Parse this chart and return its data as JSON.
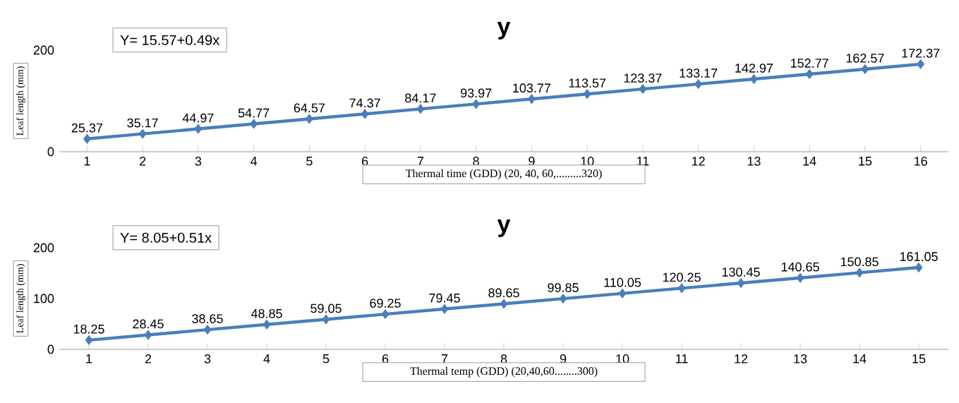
{
  "chart_data": [
    {
      "type": "line",
      "title": "y",
      "xlabel": "Thermal time (GDD) (20, 40, 60,.........320)",
      "ylabel": "Leaf length (mm)",
      "annotations": [
        "Y= 15.57+0.49x"
      ],
      "categories": [
        "1",
        "2",
        "3",
        "4",
        "5",
        "6",
        "7",
        "8",
        "9",
        "10",
        "11",
        "12",
        "13",
        "14",
        "15",
        "16"
      ],
      "values": [
        25.37,
        35.17,
        44.97,
        54.77,
        64.57,
        74.37,
        84.17,
        93.97,
        103.77,
        113.57,
        123.37,
        133.17,
        142.97,
        152.77,
        162.57,
        172.37
      ],
      "color": "#4a7ebb",
      "ylim": [
        0,
        200
      ],
      "yticks": [
        0,
        200
      ],
      "data_labels": true,
      "marker": "diamond",
      "line_style": "solid"
    },
    {
      "type": "line",
      "title": "y",
      "xlabel": "Thermal temp (GDD) (20,40,60........300)",
      "ylabel": "Leaf length (mm)",
      "annotations": [
        "Y= 8.05+0.51x"
      ],
      "categories": [
        "1",
        "2",
        "3",
        "4",
        "5",
        "6",
        "7",
        "8",
        "9",
        "10",
        "11",
        "12",
        "13",
        "14",
        "15"
      ],
      "values": [
        18.25,
        28.45,
        38.65,
        48.85,
        59.05,
        69.25,
        79.45,
        89.65,
        99.85,
        110.05,
        120.25,
        130.45,
        140.65,
        150.85,
        161.05
      ],
      "color": "#4a7ebb",
      "ylim": [
        0,
        200
      ],
      "yticks": [
        0,
        100,
        200
      ],
      "data_labels": true,
      "marker": "diamond",
      "line_style": "solid"
    }
  ]
}
